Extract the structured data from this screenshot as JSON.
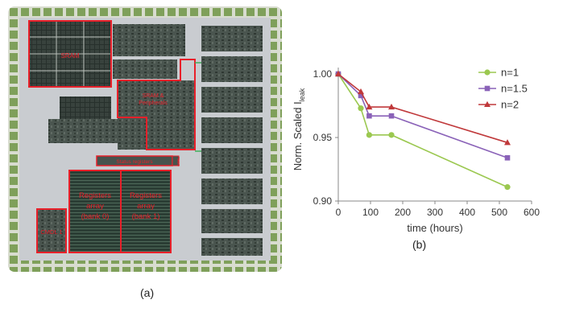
{
  "figure": {
    "caption_a": "(a)",
    "caption_b": "(b)"
  },
  "chip": {
    "labels": {
      "sram": "SRAM",
      "sram_periph_1": "SRAM &",
      "sram_periph_2": "Peripherals",
      "status_registers": "Status registers",
      "ctrl": "CTRL",
      "reg_bank0_1": "Registers",
      "reg_bank0_2": "array",
      "reg_bank0_3": "(bank 0)",
      "reg_bank1_1": "Registers",
      "reg_bank1_2": "array",
      "reg_bank1_3": "(bank 1)",
      "cmdl": "CMDL 1"
    },
    "colors": {
      "annotation": "#e8202a",
      "die": "#c9ccd0",
      "pads": "#7fa05a",
      "blocks": "#3e4a44"
    }
  },
  "chart_data": {
    "type": "line",
    "xlabel": "time (hours)",
    "ylabel": "Norm. Scaled I",
    "ylabel_sub": "leak",
    "xlim": [
      0,
      600
    ],
    "ylim": [
      0.9,
      1.0
    ],
    "xticks": [
      0,
      100,
      200,
      300,
      400,
      500,
      600
    ],
    "yticks": [
      0.9,
      0.95,
      1.0
    ],
    "ytick_labels": [
      "0.90",
      "0.95",
      "1.00"
    ],
    "grid": false,
    "legend": "top-right",
    "series": [
      {
        "name": "n=1",
        "color": "#9bc850",
        "marker": "circle",
        "x": [
          0,
          70,
          96,
          165,
          525
        ],
        "y": [
          1.0,
          0.973,
          0.952,
          0.952,
          0.911
        ]
      },
      {
        "name": "n=1.5",
        "color": "#8a62b8",
        "marker": "square",
        "x": [
          0,
          70,
          96,
          165,
          525
        ],
        "y": [
          1.0,
          0.983,
          0.967,
          0.967,
          0.934
        ]
      },
      {
        "name": "n=2",
        "color": "#c0393b",
        "marker": "triangle",
        "x": [
          0,
          70,
          96,
          165,
          525
        ],
        "y": [
          1.0,
          0.986,
          0.974,
          0.974,
          0.946
        ]
      }
    ]
  }
}
